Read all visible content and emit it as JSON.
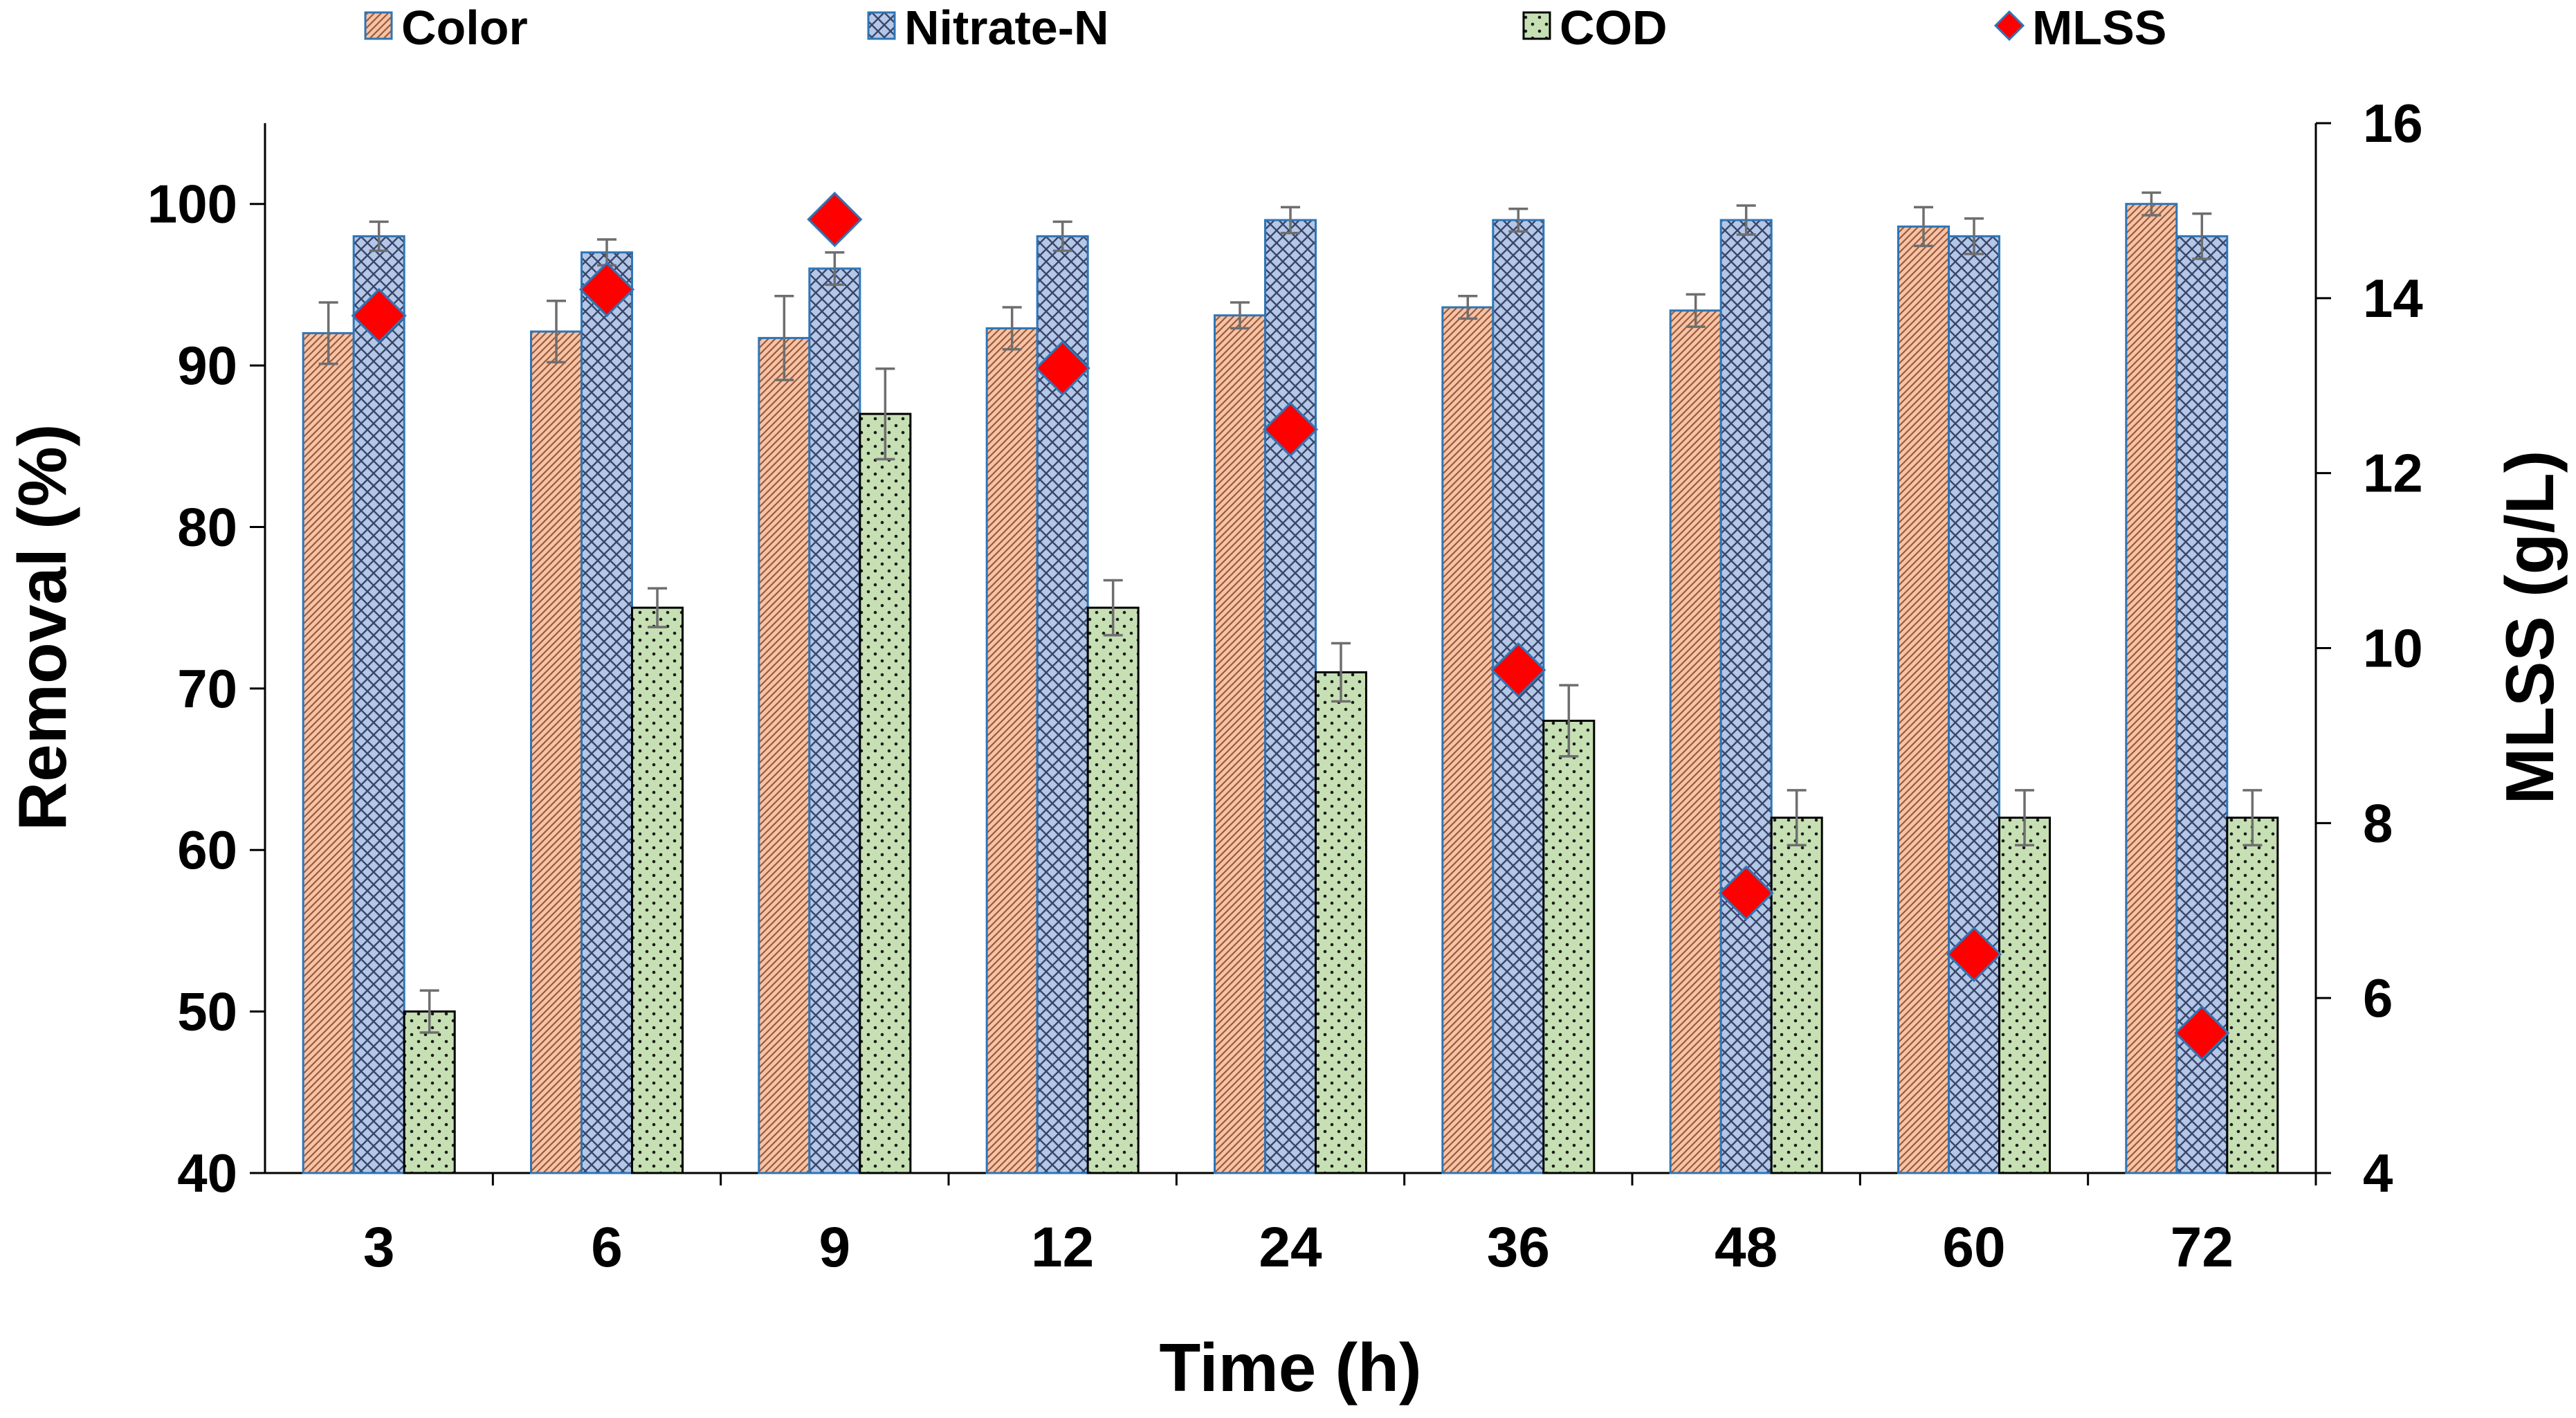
{
  "chart_data": {
    "type": "bar",
    "title": "",
    "xlabel": "Time (h)",
    "ylabel": "Removal (%)",
    "y2label": "MLSS (g/L)",
    "ylim": [
      40,
      105
    ],
    "y2lim": [
      4,
      16
    ],
    "yticks": [
      40,
      50,
      60,
      70,
      80,
      90,
      100
    ],
    "y2ticks": [
      4,
      6,
      8,
      10,
      12,
      14,
      16
    ],
    "grid": false,
    "legend_position": "top",
    "categories": [
      "3",
      "6",
      "9",
      "12",
      "24",
      "36",
      "48",
      "60",
      "72"
    ],
    "series": [
      {
        "name": "Color",
        "kind": "bar",
        "axis": "left",
        "color": "#F7C3A6",
        "edge": "#2E75B6",
        "pattern": "diagonal",
        "values": [
          92,
          92.1,
          91.7,
          92.3,
          93.1,
          93.6,
          93.4,
          98.6,
          100
        ],
        "errors": [
          1.9,
          1.9,
          2.6,
          1.3,
          0.8,
          0.7,
          1.0,
          1.2,
          0.7
        ]
      },
      {
        "name": "Nitrate-N",
        "kind": "bar",
        "axis": "left",
        "color": "#B4C7E7",
        "edge": "#2E75B6",
        "pattern": "crosshatch",
        "values": [
          98,
          97,
          96,
          98,
          99,
          99,
          99,
          98,
          98
        ],
        "errors": [
          0.9,
          0.8,
          1.0,
          0.9,
          0.8,
          0.7,
          0.9,
          1.1,
          1.4
        ]
      },
      {
        "name": "COD",
        "kind": "bar",
        "axis": "left",
        "color": "#C6E0B4",
        "edge": "#000000",
        "pattern": "dots",
        "values": [
          50,
          75,
          87,
          75,
          71,
          68,
          62,
          62,
          62
        ],
        "errors": [
          1.3,
          1.2,
          2.8,
          1.7,
          1.8,
          2.2,
          1.7,
          1.7,
          1.7
        ]
      },
      {
        "name": "MLSS",
        "kind": "scatter",
        "axis": "right",
        "color": "#FF0000",
        "edge": "#2E75B6",
        "marker": "diamond",
        "values": [
          13.8,
          14.1,
          14.9,
          13.2,
          12.5,
          9.75,
          7.2,
          6.5,
          5.6
        ]
      }
    ]
  }
}
